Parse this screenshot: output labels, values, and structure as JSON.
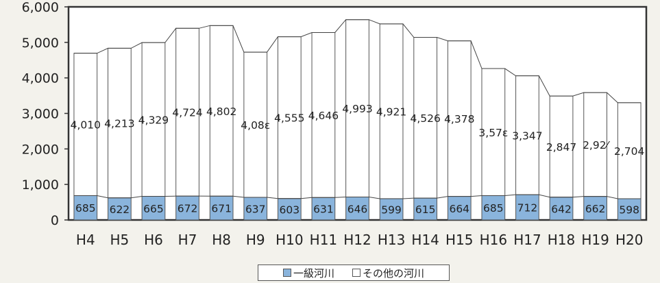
{
  "chart_data": {
    "type": "bar",
    "stacked": true,
    "categories": [
      "H4",
      "H5",
      "H6",
      "H7",
      "H8",
      "H9",
      "H10",
      "H11",
      "H12",
      "H13",
      "H14",
      "H15",
      "H16",
      "H17",
      "H18",
      "H19",
      "H20"
    ],
    "series": [
      {
        "name": "一級河川",
        "values": [
          685,
          622,
          665,
          672,
          671,
          637,
          603,
          631,
          646,
          599,
          615,
          664,
          685,
          712,
          642,
          662,
          598
        ],
        "color": "#8ab4dc"
      },
      {
        "name": "その他の河川",
        "values": [
          4010,
          4213,
          4329,
          4724,
          4802,
          4088,
          4555,
          4646,
          4993,
          4921,
          4526,
          4378,
          3578,
          3347,
          2847,
          2924,
          2704
        ],
        "color": "#ffffff"
      }
    ],
    "value_labels": {
      "bottom": [
        "685",
        "622",
        "665",
        "672",
        "671",
        "637",
        "603",
        "631",
        "646",
        "599",
        "615",
        "664",
        "685",
        "712",
        "642",
        "662",
        "598"
      ],
      "top": [
        "4,010",
        "4,213",
        "4,329",
        "4,724",
        "4,802",
        "4,08ɛ",
        "4,555",
        "4,646",
        "4,993",
        "4,921",
        "4,526",
        "4,378",
        "3,57ɛ",
        "3,347",
        "2,847",
        "2,92⁄",
        "2,704"
      ]
    },
    "yticks": [
      "0",
      "1,000",
      "2,000",
      "3,000",
      "4,000",
      "5,000",
      "6,000"
    ],
    "ylim": [
      0,
      6000
    ],
    "grid": false,
    "series_lines": true,
    "legend_position": "bottom-center"
  },
  "legend": {
    "item1": "一級河川",
    "item2": "その他の河川",
    "color1": "#8ab4dc",
    "color2": "#ffffff"
  }
}
